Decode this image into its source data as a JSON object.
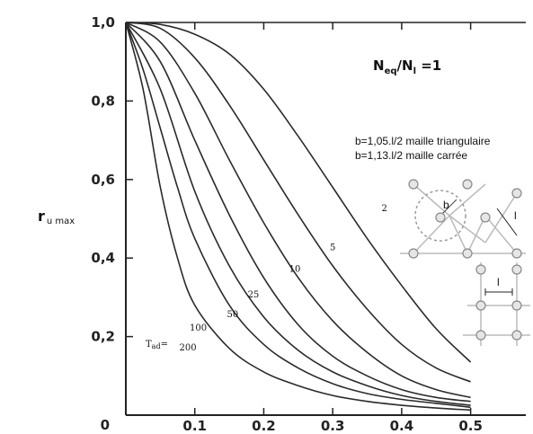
{
  "chart_data": {
    "type": "line",
    "title": "",
    "annotation_eq": {
      "main": "N",
      "sub1": "eq",
      "mid": "/N",
      "sub2": "l",
      "tail": " =1"
    },
    "ylabel": {
      "main": "r",
      "sub": "u max"
    },
    "xlabel": "",
    "xlim": [
      0,
      0.58
    ],
    "ylim": [
      0,
      1.0
    ],
    "x_ticks": [
      "0.1",
      "0.2",
      "0.3",
      "0.4",
      "0.5"
    ],
    "x_tick_values": [
      0.1,
      0.2,
      0.3,
      0.4,
      0.5
    ],
    "y_ticks": [
      "0",
      "0,2",
      "0,4",
      "0,6",
      "0,8",
      "1,0"
    ],
    "y_tick_values": [
      0,
      0.2,
      0.4,
      0.6,
      0.8,
      1.0
    ],
    "grid": false,
    "tad_label": "T",
    "tad_sub": "ad",
    "tad_suffix": "=",
    "series": [
      {
        "name": "2",
        "label_at": [
          0.375,
          0.52
        ],
        "x": [
          0,
          0.05,
          0.1,
          0.15,
          0.2,
          0.25,
          0.3,
          0.35,
          0.4,
          0.45,
          0.5
        ],
        "y": [
          1.0,
          0.995,
          0.97,
          0.92,
          0.83,
          0.71,
          0.58,
          0.45,
          0.33,
          0.22,
          0.135
        ]
      },
      {
        "name": "5",
        "label_at": [
          0.3,
          0.42
        ],
        "x": [
          0,
          0.05,
          0.1,
          0.15,
          0.2,
          0.25,
          0.3,
          0.35,
          0.4,
          0.45,
          0.5
        ],
        "y": [
          1.0,
          0.985,
          0.91,
          0.79,
          0.65,
          0.51,
          0.38,
          0.27,
          0.18,
          0.12,
          0.085
        ]
      },
      {
        "name": "10",
        "label_at": [
          0.245,
          0.365
        ],
        "x": [
          0,
          0.05,
          0.1,
          0.15,
          0.2,
          0.25,
          0.3,
          0.35,
          0.4,
          0.45,
          0.5
        ],
        "y": [
          1.0,
          0.95,
          0.82,
          0.65,
          0.49,
          0.35,
          0.24,
          0.16,
          0.1,
          0.065,
          0.045
        ]
      },
      {
        "name": "25",
        "label_at": [
          0.185,
          0.3
        ],
        "x": [
          0,
          0.05,
          0.1,
          0.15,
          0.2,
          0.25,
          0.3,
          0.35,
          0.4,
          0.45,
          0.5
        ],
        "y": [
          1.0,
          0.9,
          0.7,
          0.51,
          0.35,
          0.23,
          0.15,
          0.1,
          0.065,
          0.045,
          0.035
        ]
      },
      {
        "name": "50",
        "label_at": [
          0.155,
          0.25
        ],
        "x": [
          0,
          0.05,
          0.1,
          0.15,
          0.2,
          0.25,
          0.3,
          0.35,
          0.4,
          0.45,
          0.5
        ],
        "y": [
          1.0,
          0.83,
          0.57,
          0.38,
          0.25,
          0.165,
          0.11,
          0.075,
          0.05,
          0.035,
          0.025
        ]
      },
      {
        "name": "100",
        "label_at": [
          0.105,
          0.215
        ],
        "x": [
          0,
          0.025,
          0.05,
          0.075,
          0.1,
          0.15,
          0.2,
          0.25,
          0.3,
          0.35,
          0.4,
          0.45,
          0.5
        ],
        "y": [
          1.0,
          0.88,
          0.73,
          0.58,
          0.45,
          0.28,
          0.18,
          0.12,
          0.08,
          0.055,
          0.04,
          0.03,
          0.02
        ]
      },
      {
        "name": "200",
        "label_at": [
          0.09,
          0.165
        ],
        "x": [
          0,
          0.025,
          0.05,
          0.075,
          0.1,
          0.15,
          0.2,
          0.25,
          0.3,
          0.35,
          0.4,
          0.45,
          0.5
        ],
        "y": [
          1.0,
          0.83,
          0.58,
          0.4,
          0.28,
          0.17,
          0.11,
          0.075,
          0.05,
          0.035,
          0.025,
          0.018,
          0.013
        ]
      }
    ],
    "annotations": {
      "line1": "b=1,05.l/2 maille triangulaire",
      "line2": "b=1,13.l/2 maille carrée",
      "inset_b": "b",
      "inset_l1": "l",
      "inset_l2": "l"
    }
  }
}
